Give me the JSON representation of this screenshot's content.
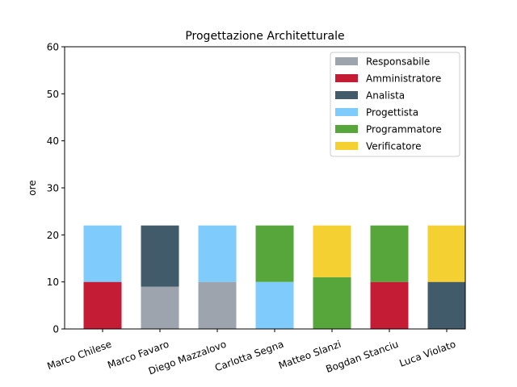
{
  "chart_data": {
    "type": "bar",
    "stacked": true,
    "title": "Progettazione Architetturale",
    "xlabel": "",
    "ylabel": "ore",
    "ylim": [
      0,
      60
    ],
    "yticks": [
      0,
      10,
      20,
      30,
      40,
      50,
      60
    ],
    "grid": false,
    "legend_position": "top-right",
    "categories": [
      "Marco Chilese",
      "Marco Favaro",
      "Diego Mazzalovo",
      "Carlotta Segna",
      "Matteo Slanzi",
      "Bogdan Stanciu",
      "Luca Violato"
    ],
    "series": [
      {
        "name": "Responsabile",
        "color": "#9ea4ad",
        "values": [
          0,
          9,
          10,
          0,
          0,
          0,
          0
        ]
      },
      {
        "name": "Amministratore",
        "color": "#c41c34",
        "values": [
          10,
          0,
          0,
          0,
          0,
          10,
          0
        ]
      },
      {
        "name": "Analista",
        "color": "#425b6b",
        "values": [
          0,
          13,
          0,
          0,
          0,
          0,
          10
        ]
      },
      {
        "name": "Progettista",
        "color": "#7ecbfc",
        "values": [
          12,
          0,
          12,
          10,
          0,
          0,
          0
        ]
      },
      {
        "name": "Programmatore",
        "color": "#56a63c",
        "values": [
          0,
          0,
          0,
          12,
          11,
          12,
          0
        ]
      },
      {
        "name": "Verificatore",
        "color": "#f4d033",
        "values": [
          0,
          0,
          0,
          0,
          11,
          0,
          12
        ]
      }
    ]
  }
}
